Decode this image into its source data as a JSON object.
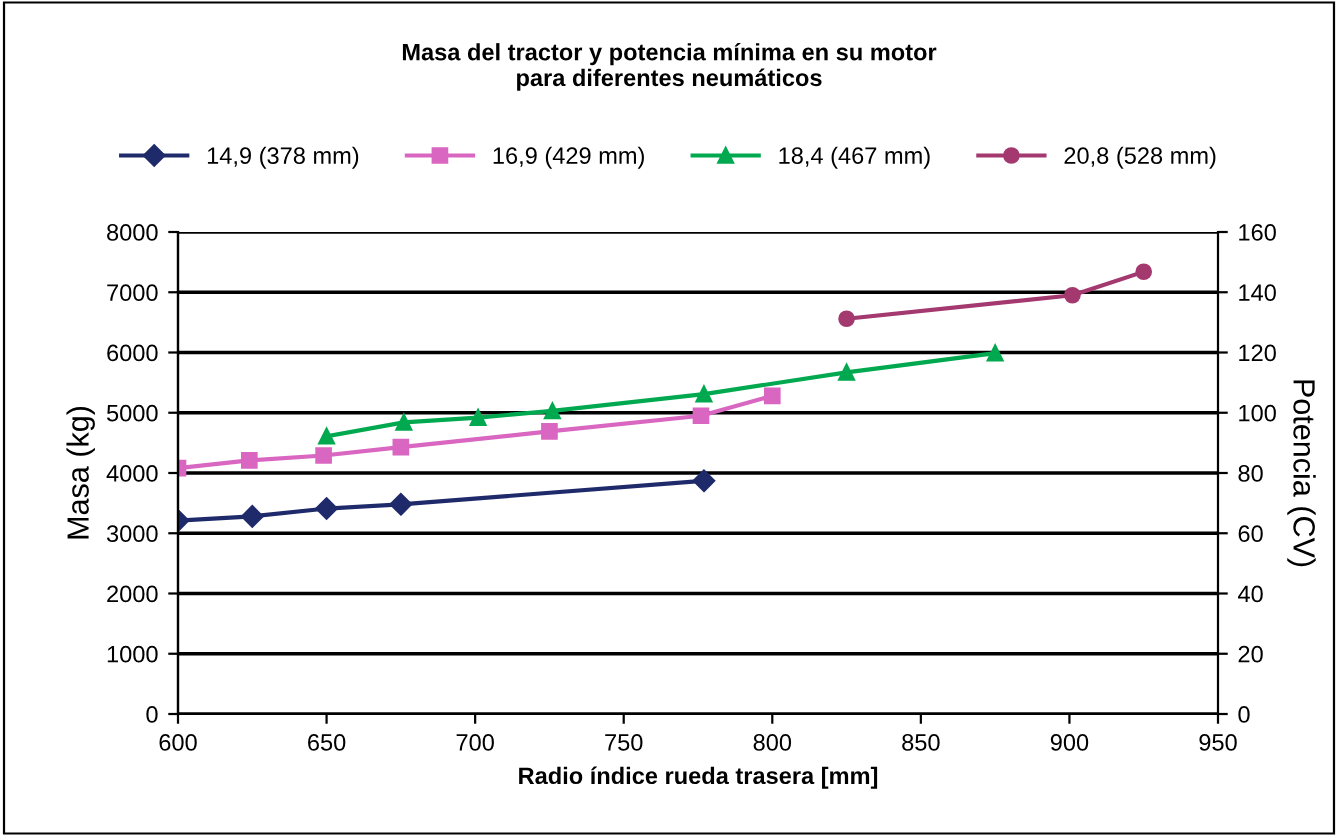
{
  "chart_data": {
    "type": "line",
    "title": "Masa del tractor y potencia mínima en su motor\npara diferentes neumáticos",
    "xlabel": "Radio índice rueda trasera [mm]",
    "ylabel": "Masa (kg)",
    "y2label": "Potencia (CV)",
    "xlim": [
      600,
      950
    ],
    "xticks": [
      600,
      650,
      700,
      750,
      800,
      850,
      900,
      950
    ],
    "ylim": [
      0,
      8000
    ],
    "yticks": [
      0,
      1000,
      2000,
      3000,
      4000,
      5000,
      6000,
      7000,
      8000
    ],
    "y2lim": [
      0,
      160
    ],
    "y2ticks": [
      0,
      20,
      40,
      60,
      80,
      100,
      120,
      140,
      160
    ],
    "grid": "y",
    "legend": "top",
    "series": [
      {
        "name": "14,9 (378 mm)",
        "color": "#1f2a6b",
        "marker": "diamond",
        "x": [
          600,
          625,
          650,
          675,
          777
        ],
        "values": [
          3210,
          3280,
          3410,
          3480,
          3870
        ]
      },
      {
        "name": "16,9 (429 mm)",
        "color": "#d966c0",
        "marker": "square",
        "x": [
          600,
          624,
          649,
          675,
          725,
          776,
          800
        ],
        "values": [
          4080,
          4210,
          4290,
          4430,
          4690,
          4950,
          5280
        ]
      },
      {
        "name": "18,4 (467 mm)",
        "color": "#00a94f",
        "marker": "triangle",
        "x": [
          650,
          676,
          701,
          726,
          777,
          825,
          875
        ],
        "values": [
          4610,
          4840,
          4920,
          5030,
          5310,
          5670,
          5990
        ]
      },
      {
        "name": "20,8 (528 mm)",
        "color": "#a3396f",
        "marker": "circle",
        "x": [
          825,
          901,
          925
        ],
        "values": [
          6560,
          6950,
          7340
        ]
      }
    ]
  }
}
